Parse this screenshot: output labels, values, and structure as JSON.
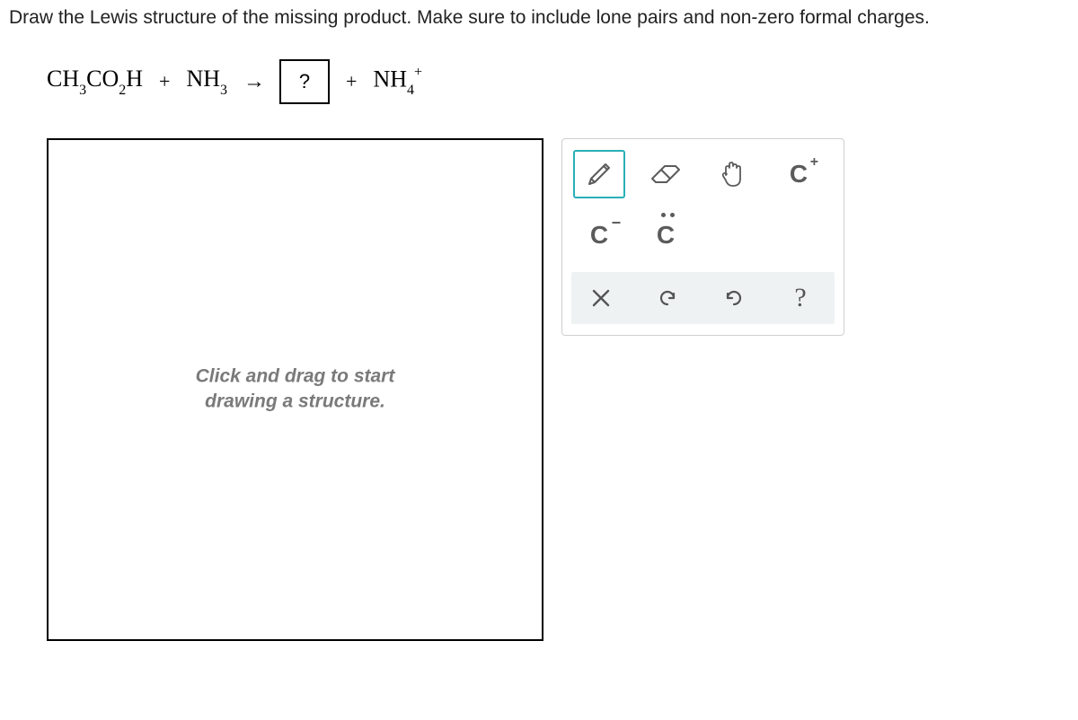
{
  "question": "Draw the Lewis structure of the missing product. Make sure to include lone pairs and non-zero formal charges.",
  "equation": {
    "reactant1_html": "CH<span class='sub'>3</span>CO<span class='sub'>2</span>H",
    "plus": "+",
    "reactant2_html": "NH<span class='sub'>3</span>",
    "arrow": "→",
    "unknown": "?",
    "product2_html": "NH<span class='sub'>4</span><span class='sup'>+</span>"
  },
  "canvas": {
    "hint_line1": "Click and drag to start",
    "hint_line2": "drawing a structure."
  },
  "tools": {
    "draw": "draw-tool",
    "erase": "eraser-tool",
    "move": "move-tool",
    "charge_plus": "C",
    "charge_minus": "C",
    "lone_pair": "C"
  },
  "actions": {
    "clear": "×",
    "undo": "↶",
    "redo": "↷",
    "help": "?"
  },
  "colors": {
    "accent": "#29b0b8",
    "icon": "#5b5b5b",
    "hint": "#7a7a7a",
    "border": "#cfcfcf",
    "panel_bg": "#eef2f3"
  }
}
